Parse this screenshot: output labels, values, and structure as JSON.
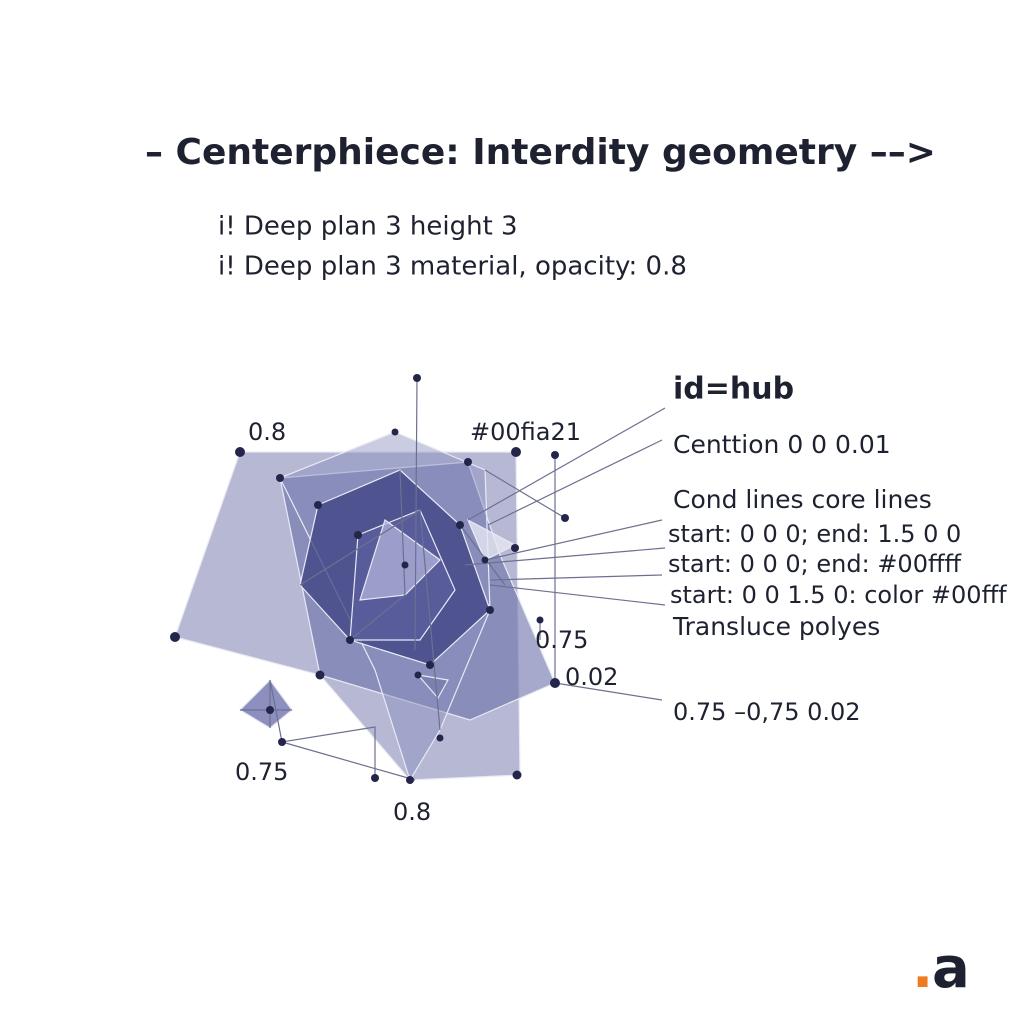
{
  "title": "– Centerphiece: Interdity geometry ––>",
  "notes": [
    "i! Deep plan 3 height 3",
    "i! Deep plan 3 material, opacity: 0.8"
  ],
  "labels": [
    "0.8",
    "#00fia21",
    "0.75",
    "0.02",
    "0.75",
    "0.8"
  ],
  "panel": {
    "heading": "id=hub",
    "lines": [
      "Centtion 0 0 0.01",
      "Cond lines core lines",
      "start: 0 0 0; end: 1.5 0 0",
      "start: 0 0 0; end: #00ffff",
      "start: 0 0 1.5 0: color #00fff",
      "Transluce polyes"
    ],
    "footer": "0.75 –0,75 0.02"
  },
  "logo": {
    "dot": ".",
    "letter": "a"
  }
}
